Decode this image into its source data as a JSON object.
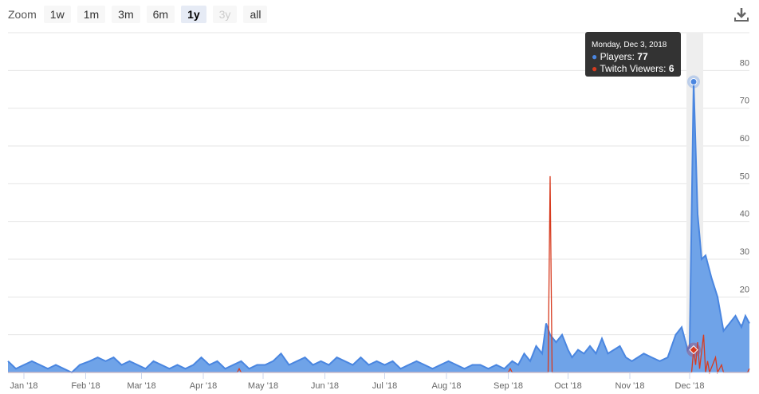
{
  "zoom": {
    "label": "Zoom",
    "buttons": [
      {
        "label": "1w",
        "state": "normal"
      },
      {
        "label": "1m",
        "state": "normal"
      },
      {
        "label": "3m",
        "state": "normal"
      },
      {
        "label": "6m",
        "state": "normal"
      },
      {
        "label": "1y",
        "state": "active"
      },
      {
        "label": "3y",
        "state": "disabled"
      },
      {
        "label": "all",
        "state": "normal"
      }
    ]
  },
  "download_icon": "download-icon",
  "tooltip": {
    "date": "Monday, Dec 3, 2018",
    "players_label": "Players: ",
    "players_value": "77",
    "twitch_label": "Twitch Viewers: ",
    "twitch_value": "6"
  },
  "chart_data": {
    "type": "area",
    "xlim": [
      "2017-12-24",
      "2018-12-31"
    ],
    "ylim": [
      0,
      90
    ],
    "yticks": [
      0,
      10,
      20,
      30,
      40,
      50,
      60,
      70,
      80
    ],
    "xticks": [
      {
        "date": "2018-01-01",
        "label": "Jan '18"
      },
      {
        "date": "2018-02-01",
        "label": "Feb '18"
      },
      {
        "date": "2018-03-01",
        "label": "Mar '18"
      },
      {
        "date": "2018-04-01",
        "label": "Apr '18"
      },
      {
        "date": "2018-05-01",
        "label": "May '18"
      },
      {
        "date": "2018-06-01",
        "label": "Jun '18"
      },
      {
        "date": "2018-07-01",
        "label": "Jul '18"
      },
      {
        "date": "2018-08-01",
        "label": "Aug '18"
      },
      {
        "date": "2018-09-01",
        "label": "Sep '18"
      },
      {
        "date": "2018-10-01",
        "label": "Oct '18"
      },
      {
        "date": "2018-11-01",
        "label": "Nov '18"
      },
      {
        "date": "2018-12-01",
        "label": "Dec '18"
      }
    ],
    "grid": true,
    "highlight_date": "2018-12-03",
    "series": [
      {
        "name": "Players",
        "color": "#4a86e0",
        "fill": "#6fa3e8",
        "points": [
          [
            "2017-12-24",
            3
          ],
          [
            "2017-12-28",
            1
          ],
          [
            "2018-01-01",
            2
          ],
          [
            "2018-01-05",
            3
          ],
          [
            "2018-01-09",
            2
          ],
          [
            "2018-01-13",
            1
          ],
          [
            "2018-01-17",
            2
          ],
          [
            "2018-01-21",
            1
          ],
          [
            "2018-01-25",
            0
          ],
          [
            "2018-01-29",
            2
          ],
          [
            "2018-02-03",
            3
          ],
          [
            "2018-02-07",
            4
          ],
          [
            "2018-02-11",
            3
          ],
          [
            "2018-02-15",
            4
          ],
          [
            "2018-02-19",
            2
          ],
          [
            "2018-02-23",
            3
          ],
          [
            "2018-02-27",
            2
          ],
          [
            "2018-03-03",
            1
          ],
          [
            "2018-03-07",
            3
          ],
          [
            "2018-03-11",
            2
          ],
          [
            "2018-03-15",
            1
          ],
          [
            "2018-03-19",
            2
          ],
          [
            "2018-03-23",
            1
          ],
          [
            "2018-03-27",
            2
          ],
          [
            "2018-03-31",
            4
          ],
          [
            "2018-04-04",
            2
          ],
          [
            "2018-04-08",
            3
          ],
          [
            "2018-04-12",
            1
          ],
          [
            "2018-04-16",
            2
          ],
          [
            "2018-04-20",
            3
          ],
          [
            "2018-04-24",
            1
          ],
          [
            "2018-04-28",
            2
          ],
          [
            "2018-05-02",
            2
          ],
          [
            "2018-05-06",
            3
          ],
          [
            "2018-05-10",
            5
          ],
          [
            "2018-05-14",
            2
          ],
          [
            "2018-05-18",
            3
          ],
          [
            "2018-05-22",
            4
          ],
          [
            "2018-05-26",
            2
          ],
          [
            "2018-05-30",
            3
          ],
          [
            "2018-06-03",
            2
          ],
          [
            "2018-06-07",
            4
          ],
          [
            "2018-06-11",
            3
          ],
          [
            "2018-06-15",
            2
          ],
          [
            "2018-06-19",
            4
          ],
          [
            "2018-06-23",
            2
          ],
          [
            "2018-06-27",
            3
          ],
          [
            "2018-07-01",
            2
          ],
          [
            "2018-07-05",
            3
          ],
          [
            "2018-07-09",
            1
          ],
          [
            "2018-07-13",
            2
          ],
          [
            "2018-07-17",
            3
          ],
          [
            "2018-07-21",
            2
          ],
          [
            "2018-07-25",
            1
          ],
          [
            "2018-07-29",
            2
          ],
          [
            "2018-08-02",
            3
          ],
          [
            "2018-08-06",
            2
          ],
          [
            "2018-08-10",
            1
          ],
          [
            "2018-08-14",
            2
          ],
          [
            "2018-08-18",
            2
          ],
          [
            "2018-08-22",
            1
          ],
          [
            "2018-08-26",
            2
          ],
          [
            "2018-08-30",
            1
          ],
          [
            "2018-09-03",
            3
          ],
          [
            "2018-09-06",
            2
          ],
          [
            "2018-09-09",
            5
          ],
          [
            "2018-09-12",
            3
          ],
          [
            "2018-09-15",
            7
          ],
          [
            "2018-09-18",
            5
          ],
          [
            "2018-09-20",
            13
          ],
          [
            "2018-09-22",
            10
          ],
          [
            "2018-09-25",
            8
          ],
          [
            "2018-09-28",
            10
          ],
          [
            "2018-10-01",
            6
          ],
          [
            "2018-10-03",
            4
          ],
          [
            "2018-10-06",
            6
          ],
          [
            "2018-10-09",
            5
          ],
          [
            "2018-10-12",
            7
          ],
          [
            "2018-10-15",
            5
          ],
          [
            "2018-10-18",
            9
          ],
          [
            "2018-10-21",
            5
          ],
          [
            "2018-10-24",
            6
          ],
          [
            "2018-10-27",
            7
          ],
          [
            "2018-10-30",
            4
          ],
          [
            "2018-11-02",
            3
          ],
          [
            "2018-11-05",
            4
          ],
          [
            "2018-11-08",
            5
          ],
          [
            "2018-11-12",
            4
          ],
          [
            "2018-11-16",
            3
          ],
          [
            "2018-11-20",
            4
          ],
          [
            "2018-11-24",
            10
          ],
          [
            "2018-11-27",
            12
          ],
          [
            "2018-11-30",
            6
          ],
          [
            "2018-12-01",
            7
          ],
          [
            "2018-12-03",
            77
          ],
          [
            "2018-12-05",
            42
          ],
          [
            "2018-12-07",
            30
          ],
          [
            "2018-12-09",
            31
          ],
          [
            "2018-12-12",
            25
          ],
          [
            "2018-12-15",
            20
          ],
          [
            "2018-12-18",
            11
          ],
          [
            "2018-12-21",
            13
          ],
          [
            "2018-12-24",
            15
          ],
          [
            "2018-12-27",
            12
          ],
          [
            "2018-12-29",
            15
          ],
          [
            "2018-12-31",
            13
          ]
        ]
      },
      {
        "name": "Twitch Viewers",
        "color": "#d73b1f",
        "points": [
          [
            "2017-12-24",
            0
          ],
          [
            "2018-04-18",
            0
          ],
          [
            "2018-04-19",
            1
          ],
          [
            "2018-04-20",
            0
          ],
          [
            "2018-09-01",
            0
          ],
          [
            "2018-09-02",
            1
          ],
          [
            "2018-09-03",
            0
          ],
          [
            "2018-09-21",
            0
          ],
          [
            "2018-09-22",
            52
          ],
          [
            "2018-09-23",
            0
          ],
          [
            "2018-12-02",
            0
          ],
          [
            "2018-12-03",
            6
          ],
          [
            "2018-12-04",
            2
          ],
          [
            "2018-12-05",
            8
          ],
          [
            "2018-12-06",
            1
          ],
          [
            "2018-12-08",
            10
          ],
          [
            "2018-12-09",
            0
          ],
          [
            "2018-12-10",
            3
          ],
          [
            "2018-12-11",
            0
          ],
          [
            "2018-12-14",
            4
          ],
          [
            "2018-12-15",
            0
          ],
          [
            "2018-12-17",
            2
          ],
          [
            "2018-12-18",
            0
          ],
          [
            "2018-12-30",
            0
          ],
          [
            "2018-12-31",
            1
          ]
        ]
      }
    ]
  }
}
